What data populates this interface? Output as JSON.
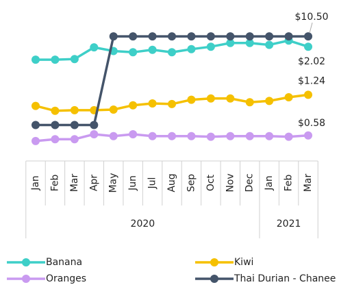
{
  "chart_data": {
    "type": "line",
    "categories": [
      "Jan",
      "Feb",
      "Mar",
      "Apr",
      "May",
      "Jun",
      "Jul",
      "Aug",
      "Sep",
      "Oct",
      "Nov",
      "Dec",
      "Jan",
      "Feb",
      "Mar"
    ],
    "groups": [
      {
        "label": "2020",
        "span": 12
      },
      {
        "label": "2021",
        "span": 3
      }
    ],
    "ylim": [
      0,
      2.5
    ],
    "y2lim": [
      0,
      12
    ],
    "series": [
      {
        "name": "Banana",
        "color": "#3ecfc8",
        "values": [
          1.81,
          1.81,
          1.82,
          2.01,
          1.95,
          1.93,
          1.97,
          1.93,
          1.98,
          2.02,
          2.08,
          2.08,
          2.05,
          2.12,
          2.02
        ],
        "value_labels": [
          null,
          null,
          null,
          null,
          null,
          null,
          null,
          null,
          null,
          null,
          null,
          null,
          null,
          null,
          "$2.02"
        ]
      },
      {
        "name": "Kiwi",
        "color": "#f5c000",
        "values": [
          1.06,
          0.98,
          0.99,
          0.99,
          1.0,
          1.07,
          1.1,
          1.09,
          1.16,
          1.18,
          1.18,
          1.12,
          1.14,
          1.2,
          1.24
        ],
        "value_labels": [
          null,
          null,
          null,
          null,
          null,
          null,
          null,
          null,
          null,
          null,
          null,
          null,
          null,
          null,
          "$1.24"
        ]
      },
      {
        "name": "Oranges",
        "color": "#c99af0",
        "values": [
          0.49,
          0.52,
          0.52,
          0.6,
          0.57,
          0.6,
          0.57,
          0.57,
          0.57,
          0.56,
          0.57,
          0.57,
          0.57,
          0.56,
          0.58
        ],
        "value_labels": [
          null,
          null,
          null,
          null,
          null,
          null,
          null,
          null,
          null,
          null,
          null,
          null,
          null,
          null,
          "$0.58"
        ]
      },
      {
        "name": "Thai Durian - Chanee",
        "color": "#44546a",
        "axis": "y2",
        "values": [
          3.6,
          3.6,
          3.6,
          3.6,
          10.5,
          10.5,
          10.5,
          10.5,
          10.5,
          10.5,
          10.5,
          10.5,
          10.5,
          10.5,
          10.5
        ],
        "value_labels": [
          null,
          null,
          null,
          null,
          null,
          null,
          null,
          null,
          null,
          null,
          null,
          null,
          null,
          null,
          "$10.50"
        ]
      }
    ],
    "legend": "bottom"
  }
}
